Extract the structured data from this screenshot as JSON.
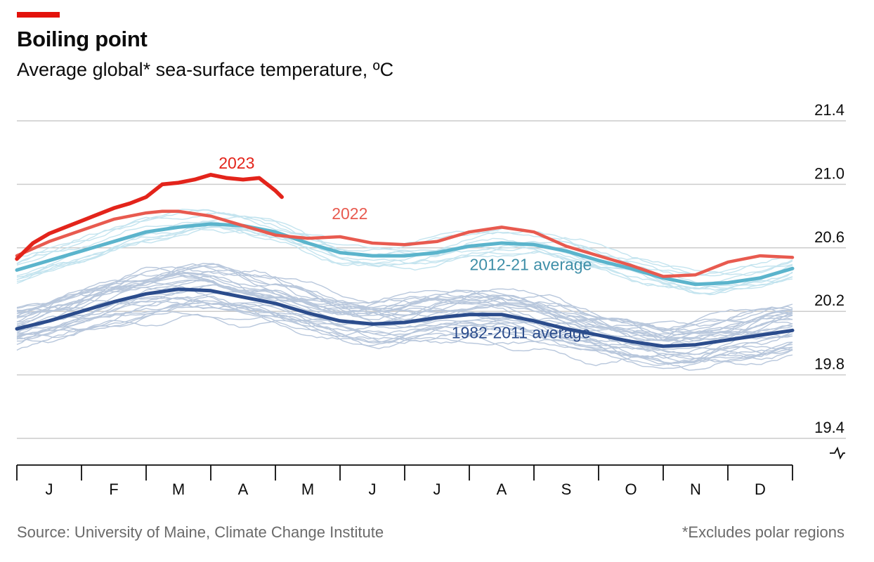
{
  "header": {
    "title": "Boiling point",
    "subtitle": "Average global* sea-surface temperature, ºC"
  },
  "footer": {
    "source": "Source: University of Maine, Climate Change Institute",
    "note": "*Excludes polar regions"
  },
  "colors": {
    "accent": "#e3120b",
    "line_2023": "#e3241b",
    "line_2022": "#e85a4f",
    "line_2012_21": "#5bb4cc",
    "line_1982_2011": "#2b4c8c",
    "older_years": "#b8c7dc",
    "recent_years": "#c4e4ef",
    "grid": "#cccccc",
    "axis": "#0c0c0c"
  },
  "chart_data": {
    "type": "line",
    "title": "Boiling point",
    "subtitle": "Average global* sea-surface temperature, ºC",
    "x_unit": "month",
    "xlim": [
      0,
      12
    ],
    "ylim": [
      19.4,
      21.4
    ],
    "yticks": [
      "21.4",
      "21.0",
      "20.6",
      "20.2",
      "19.8",
      "19.4"
    ],
    "ytick_values": [
      21.4,
      21.0,
      20.6,
      20.2,
      19.8,
      19.4
    ],
    "categories": [
      "J",
      "F",
      "M",
      "A",
      "M",
      "J",
      "J",
      "A",
      "S",
      "O",
      "N",
      "D"
    ],
    "grid": true,
    "y_axis_side": "right",
    "y_axis_break": true,
    "series": [
      {
        "name": "2023",
        "role": "highlight",
        "x": [
          0.0,
          0.25,
          0.5,
          0.75,
          1.0,
          1.25,
          1.5,
          1.75,
          2.0,
          2.25,
          2.5,
          2.75,
          3.0,
          3.25,
          3.5,
          3.75,
          4.0,
          4.1
        ],
        "y": [
          20.53,
          20.63,
          20.69,
          20.73,
          20.77,
          20.81,
          20.85,
          20.88,
          20.92,
          21.0,
          21.01,
          21.03,
          21.06,
          21.04,
          21.03,
          21.04,
          20.96,
          20.92
        ]
      },
      {
        "name": "2022",
        "role": "highlight",
        "x": [
          0.0,
          0.5,
          1.0,
          1.5,
          2.0,
          2.25,
          2.5,
          3.0,
          3.5,
          4.0,
          4.5,
          5.0,
          5.5,
          6.0,
          6.5,
          7.0,
          7.5,
          8.0,
          8.5,
          9.0,
          9.5,
          10.0,
          10.5,
          11.0,
          11.5,
          12.0
        ],
        "y": [
          20.55,
          20.64,
          20.71,
          20.78,
          20.82,
          20.83,
          20.83,
          20.8,
          20.74,
          20.68,
          20.66,
          20.67,
          20.63,
          20.62,
          20.64,
          20.7,
          20.73,
          20.7,
          20.61,
          20.55,
          20.49,
          20.42,
          20.43,
          20.51,
          20.55,
          20.54
        ]
      },
      {
        "name": "2012-21 average",
        "role": "average",
        "x": [
          0.0,
          0.5,
          1.0,
          1.5,
          2.0,
          2.5,
          3.0,
          3.5,
          4.0,
          4.5,
          5.0,
          5.5,
          6.0,
          6.5,
          7.0,
          7.5,
          8.0,
          8.5,
          9.0,
          9.5,
          10.0,
          10.5,
          11.0,
          11.5,
          12.0
        ],
        "y": [
          20.46,
          20.52,
          20.58,
          20.64,
          20.7,
          20.73,
          20.75,
          20.74,
          20.7,
          20.63,
          20.57,
          20.55,
          20.55,
          20.57,
          20.61,
          20.63,
          20.62,
          20.58,
          20.52,
          20.47,
          20.41,
          20.37,
          20.38,
          20.41,
          20.47
        ]
      },
      {
        "name": "1982-2011 average",
        "role": "average",
        "x": [
          0.0,
          0.5,
          1.0,
          1.5,
          2.0,
          2.5,
          3.0,
          3.5,
          4.0,
          4.5,
          5.0,
          5.5,
          6.0,
          6.5,
          7.0,
          7.5,
          8.0,
          8.5,
          9.0,
          9.5,
          10.0,
          10.5,
          11.0,
          11.5,
          12.0
        ],
        "y": [
          20.09,
          20.14,
          20.2,
          20.26,
          20.31,
          20.34,
          20.33,
          20.29,
          20.25,
          20.19,
          20.14,
          20.12,
          20.13,
          20.16,
          20.18,
          20.18,
          20.14,
          20.09,
          20.05,
          20.01,
          19.98,
          19.99,
          20.02,
          20.05,
          20.08
        ]
      }
    ],
    "background_years": {
      "description_count_older": 30,
      "description_count_recent": 10,
      "note": "thin lines for individual years 1982-2021"
    },
    "annotations": [
      {
        "text": "2023",
        "series": "2023"
      },
      {
        "text": "2022",
        "series": "2022"
      },
      {
        "text": "2012-21 average",
        "series": "2012-21 average"
      },
      {
        "text": "1982-2011 average",
        "series": "1982-2011 average"
      }
    ]
  }
}
